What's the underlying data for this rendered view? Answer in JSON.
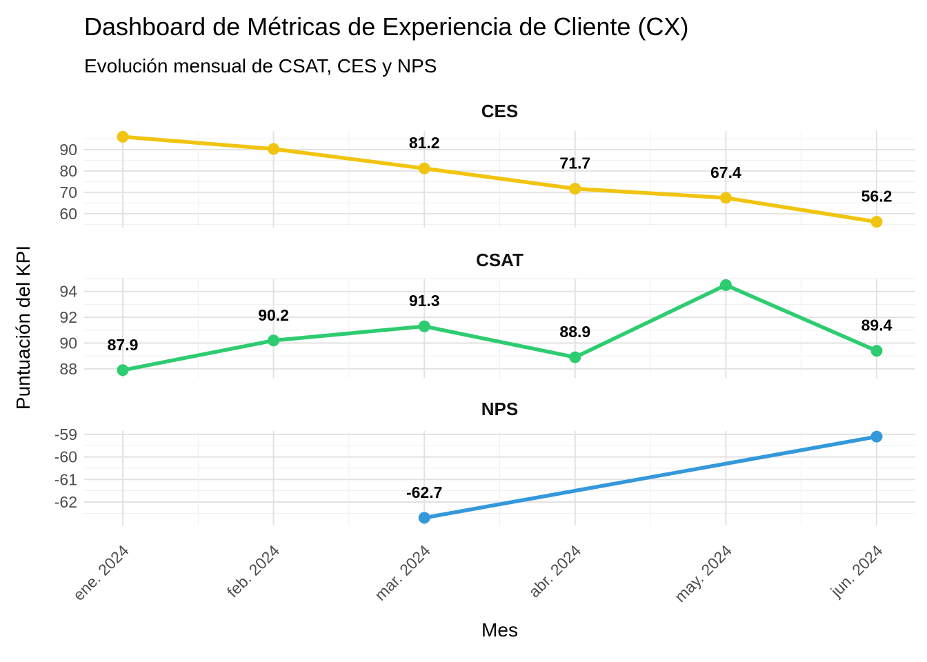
{
  "title": "Dashboard de Métricas de Experiencia de Cliente (CX)",
  "subtitle": "Evolución mensual de CSAT, CES y NPS",
  "axes": {
    "x_title": "Mes",
    "y_title": "Puntuación del KPI",
    "x_tick_rotation_deg": 45
  },
  "colors": {
    "background": "#FFFFFF",
    "grid_major": "#E2E2E2",
    "grid_minor": "#EFEFEF",
    "tick_label": "#4D4D4D",
    "text": "#000000"
  },
  "chart_data": {
    "type": "line",
    "title": "Dashboard de Métricas de Experiencia de Cliente (CX)",
    "subtitle": "Evolución mensual de CSAT, CES y NPS",
    "xlabel": "Mes",
    "ylabel": "Puntuación del KPI",
    "categories": [
      "ene. 2024",
      "feb. 2024",
      "mar. 2024",
      "abr. 2024",
      "may. 2024",
      "jun. 2024"
    ],
    "grid": true,
    "legend_position": "none",
    "facets": [
      {
        "name": "CES",
        "color": "#F1C40F",
        "values": [
          96.0,
          90.3,
          81.2,
          71.7,
          67.4,
          56.2
        ],
        "point_labels": [
          null,
          null,
          "81.2",
          "71.7",
          "67.4",
          "56.2"
        ],
        "y_ticks": [
          90,
          80,
          70,
          60
        ],
        "y_minor_ticks": [
          95,
          85,
          75,
          65,
          55
        ],
        "y_domain": [
          53.5,
          98.7
        ]
      },
      {
        "name": "CSAT",
        "color": "#2ECC71",
        "values": [
          87.9,
          90.2,
          91.3,
          88.9,
          94.5,
          89.4
        ],
        "point_labels": [
          "87.9",
          "90.2",
          "91.3",
          "88.9",
          null,
          "89.4"
        ],
        "y_ticks": [
          94,
          92,
          90,
          88
        ],
        "y_minor_ticks": [
          95,
          93,
          91,
          89
        ],
        "y_domain": [
          87.3,
          95.0
        ]
      },
      {
        "name": "NPS",
        "color": "#3498DB",
        "values": [
          null,
          null,
          -62.7,
          null,
          null,
          -59.1
        ],
        "point_labels": [
          null,
          null,
          "-62.7",
          null,
          null,
          null
        ],
        "y_ticks": [
          -59,
          -60,
          -61,
          -62
        ],
        "y_minor_ticks": [
          -59.5,
          -60.5,
          -61.5,
          -62.5
        ],
        "y_domain": [
          -63.04,
          -58.85
        ]
      }
    ]
  }
}
